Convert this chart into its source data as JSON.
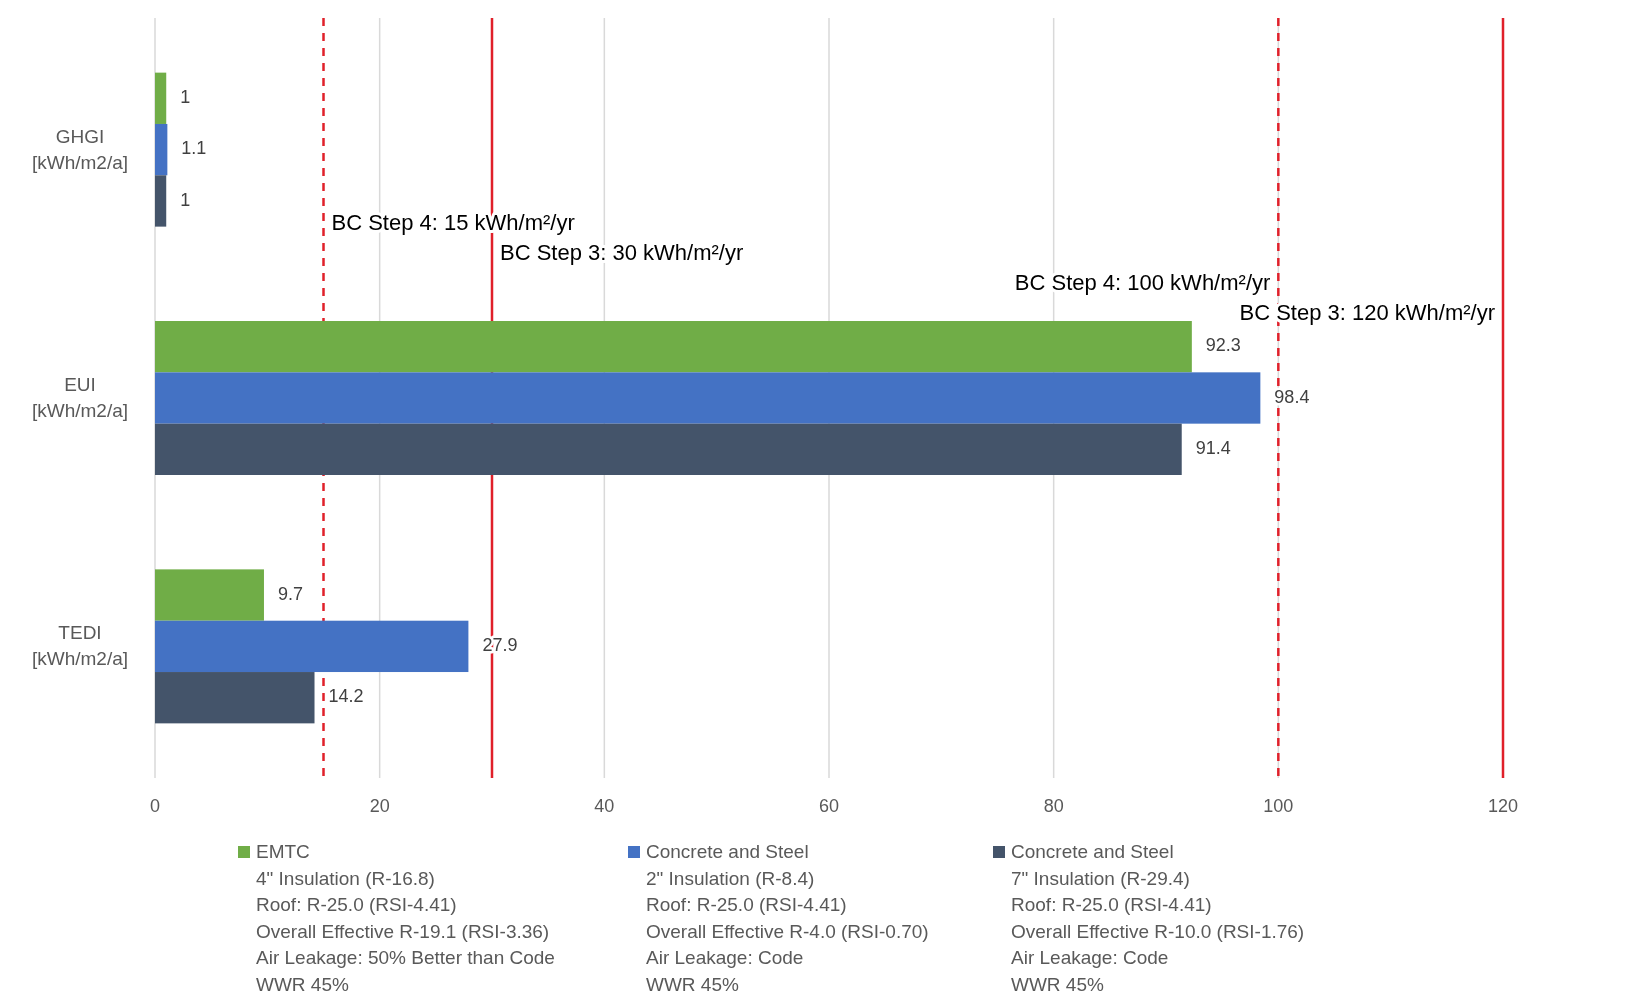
{
  "chart_data": {
    "type": "bar",
    "orientation": "horizontal",
    "categories": [
      "GHGI\n[kWh/m2/a]",
      "EUI\n[kWh/m2/a]",
      "TEDI\n[kWh/m2/a]"
    ],
    "series": [
      {
        "name": "EMTC\n4\" Insulation (R-16.8)\nRoof: R-25.0 (RSI-4.41)\nOverall Effective R-19.1 (RSI-3.36)\nAir Leakage: 50% Better than Code\nWWR 45%",
        "color": "#70ad47",
        "values": [
          1,
          92.3,
          9.7
        ]
      },
      {
        "name": "Concrete and Steel\n2\" Insulation (R-8.4)\nRoof: R-25.0 (RSI-4.41)\nOverall Effective R-4.0 (RSI-0.70)\nAir Leakage: Code\nWWR 45%",
        "color": "#4472c4",
        "values": [
          1.1,
          98.4,
          27.9
        ]
      },
      {
        "name": "Concrete and Steel\n7\" Insulation (R-29.4)\nRoof: R-25.0 (RSI-4.41)\nOverall Effective R-10.0 (RSI-1.76)\nAir Leakage: Code\nWWR 45%",
        "color": "#44546a",
        "values": [
          1,
          91.4,
          14.2
        ]
      }
    ],
    "xlim": [
      0,
      120
    ],
    "xticks": [
      0,
      20,
      40,
      60,
      80,
      100,
      120
    ],
    "grid": "x",
    "data_labels": true,
    "legend": "bottom",
    "ref_lines": [
      {
        "axis": "x",
        "value": 15,
        "label": "BC Step 4: 15 kWh/m²/yr",
        "color": "#e0202a",
        "line_style": "dashed"
      },
      {
        "axis": "x",
        "value": 30,
        "label": "BC Step 3: 30 kWh/m²/yr",
        "color": "#e0202a",
        "line_style": "solid"
      },
      {
        "axis": "x",
        "value": 100,
        "label": "BC Step 4: 100 kWh/m²/yr",
        "color": "#e0202a",
        "line_style": "dashed"
      },
      {
        "axis": "x",
        "value": 120,
        "label": "BC Step 3: 120 kWh/m²/yr",
        "color": "#e0202a",
        "line_style": "solid"
      }
    ]
  }
}
